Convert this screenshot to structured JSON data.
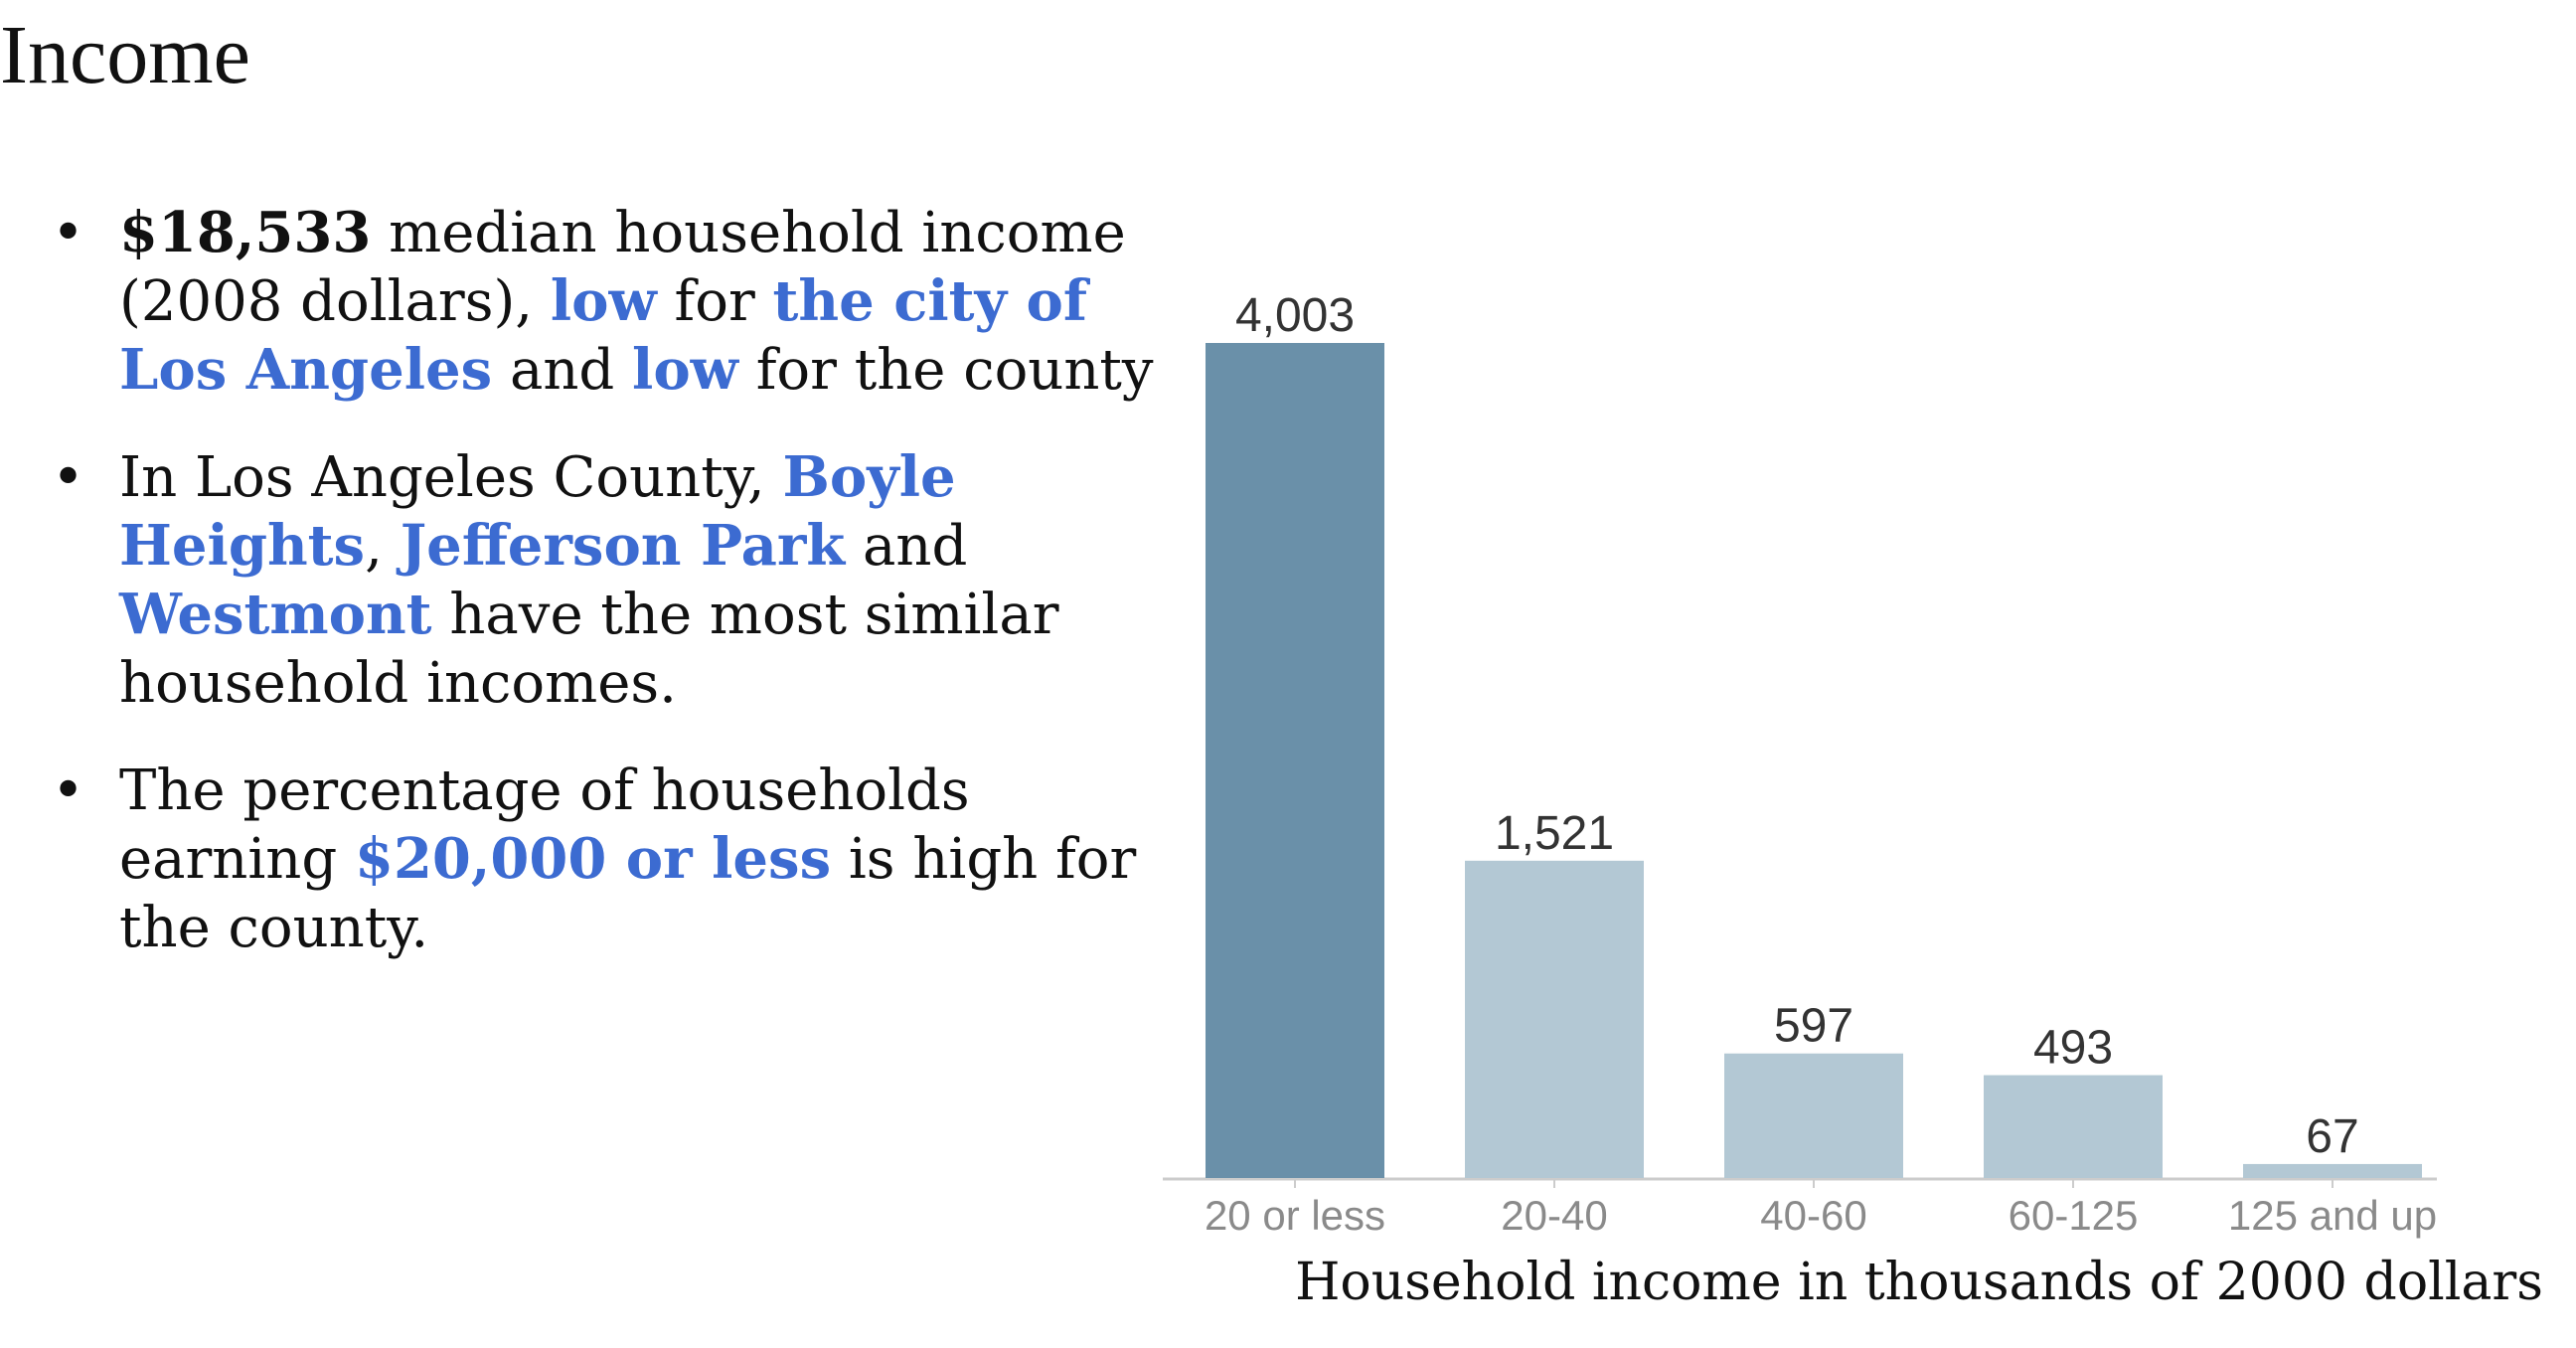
{
  "page": {
    "title": "Income"
  },
  "facts": {
    "item1": {
      "strong": "$18,533",
      "t1": " median household income (2008 dollars), ",
      "link1": "low",
      "t2": " for ",
      "link2": "the city of Los Angeles",
      "t3": " and ",
      "link3": "low",
      "t4": " for the county"
    },
    "item2": {
      "t1": "In Los Angeles County, ",
      "link1": "Boyle Heights",
      "t2": ", ",
      "link2": "Jefferson Park",
      "t3": " and ",
      "link3": "Westmont",
      "t4": " have the most similar household incomes."
    },
    "item3": {
      "t1": "The percentage of households earning ",
      "link1": "$20,000 or less",
      "t2": " is high for the county."
    }
  },
  "colors": {
    "link": "#3c6bd1",
    "highlight_bar": "#6a90a9",
    "bar": "#b3c8d4",
    "axis": "#cccccc"
  },
  "chart_data": {
    "type": "bar",
    "categories": [
      "20 or less",
      "20-40",
      "40-60",
      "60-125",
      "125 and up"
    ],
    "values": [
      4003,
      1521,
      597,
      493,
      67
    ],
    "value_labels": [
      "4,003",
      "1,521",
      "597",
      "493",
      "67"
    ],
    "highlighted_index": 0,
    "xlabel": "Household income in thousands of 2000 dollars",
    "ylabel": "",
    "ylim": [
      0,
      4003
    ],
    "grid": false,
    "legend": "none"
  }
}
